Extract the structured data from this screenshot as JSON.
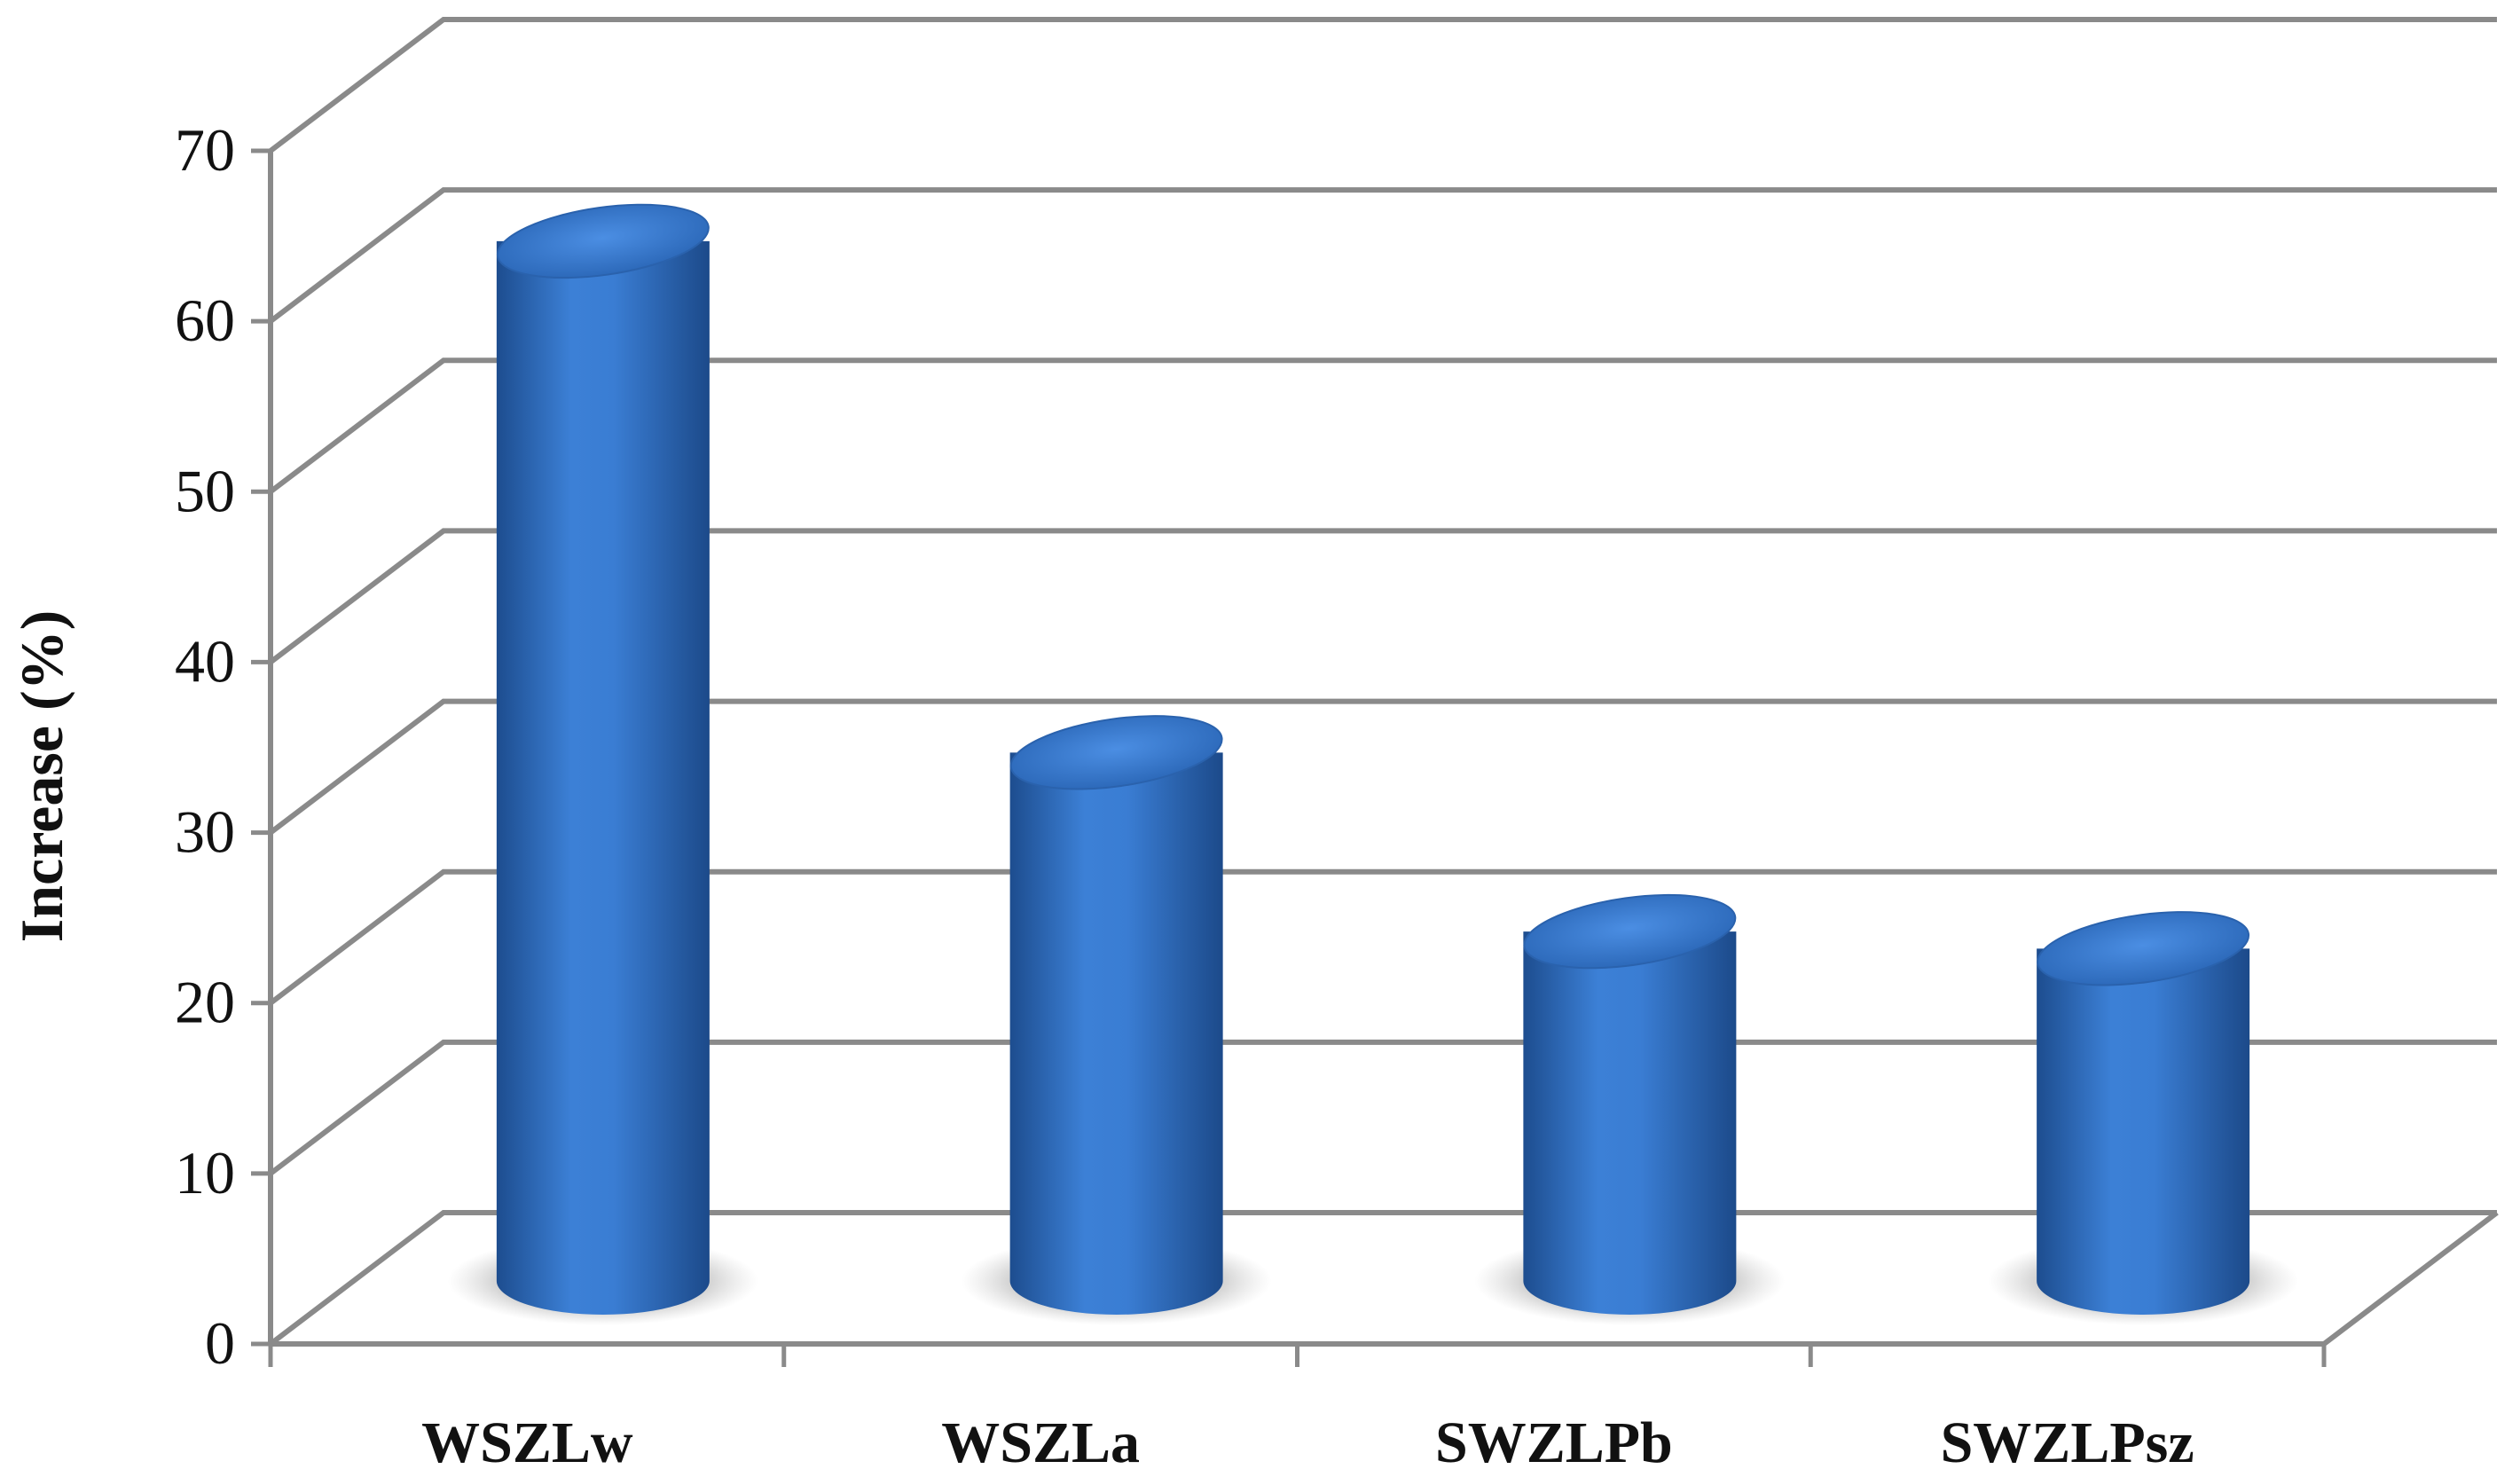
{
  "chart_data": {
    "type": "bar",
    "style": "3d-cylinder",
    "categories": [
      "WSZLw",
      "WSZLa",
      "SWZLPb",
      "SWZLPsz"
    ],
    "values": [
      61,
      31,
      20.5,
      19.5
    ],
    "xlabel": "",
    "ylabel": "Increase (%)",
    "ylim": [
      0,
      70
    ],
    "yticks": [
      "0",
      "10",
      "20",
      "30",
      "40",
      "50",
      "60",
      "70"
    ],
    "grid": true,
    "legend": "none",
    "colors": {
      "bar": "#2f6ec0",
      "bar_light": "#4a8be0",
      "bar_dark": "#1e4f92",
      "grid": "#8a8a8a",
      "text": "#111111"
    }
  }
}
